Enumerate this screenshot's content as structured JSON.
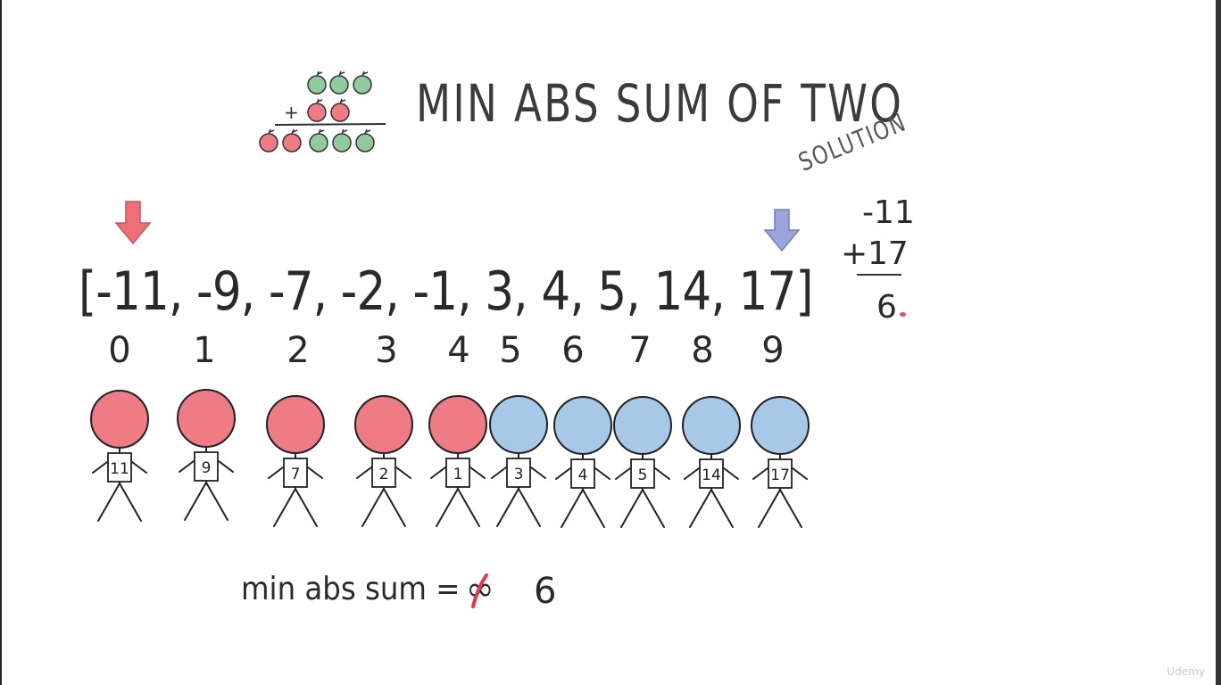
{
  "title": "MIN ABS SUM OF TWO",
  "subtitle": "SOLUTION",
  "array_text": "[-11, -9, -7, -2, -1, 3, 4, 5, 14, 17]",
  "indices": [
    "0",
    "1",
    "2",
    "3",
    "4",
    "5",
    "6",
    "7",
    "8",
    "9"
  ],
  "people": [
    {
      "label": "11",
      "color": "#ef7b84"
    },
    {
      "label": "9",
      "color": "#ef7b84"
    },
    {
      "label": "7",
      "color": "#ef7b84"
    },
    {
      "label": "2",
      "color": "#ef7b84"
    },
    {
      "label": "1",
      "color": "#ef7b84"
    },
    {
      "label": "3",
      "color": "#a8c8e8"
    },
    {
      "label": "4",
      "color": "#a8c8e8"
    },
    {
      "label": "5",
      "color": "#a8c8e8"
    },
    {
      "label": "14",
      "color": "#a8c8e8"
    },
    {
      "label": "17",
      "color": "#a8c8e8"
    }
  ],
  "calc": {
    "a": "-11",
    "plus": "+",
    "b": "17",
    "result": "6"
  },
  "apples": {
    "plus": "+"
  },
  "result": {
    "label": "min abs sum =",
    "crossed": "∞",
    "value": "6"
  },
  "watermark": "Udemy",
  "colors": {
    "red": "#ef7b84",
    "blue": "#a8c8e8",
    "green": "#8fcb9b",
    "arrow_red": "#ef6f78",
    "arrow_blue": "#9aa5da"
  }
}
